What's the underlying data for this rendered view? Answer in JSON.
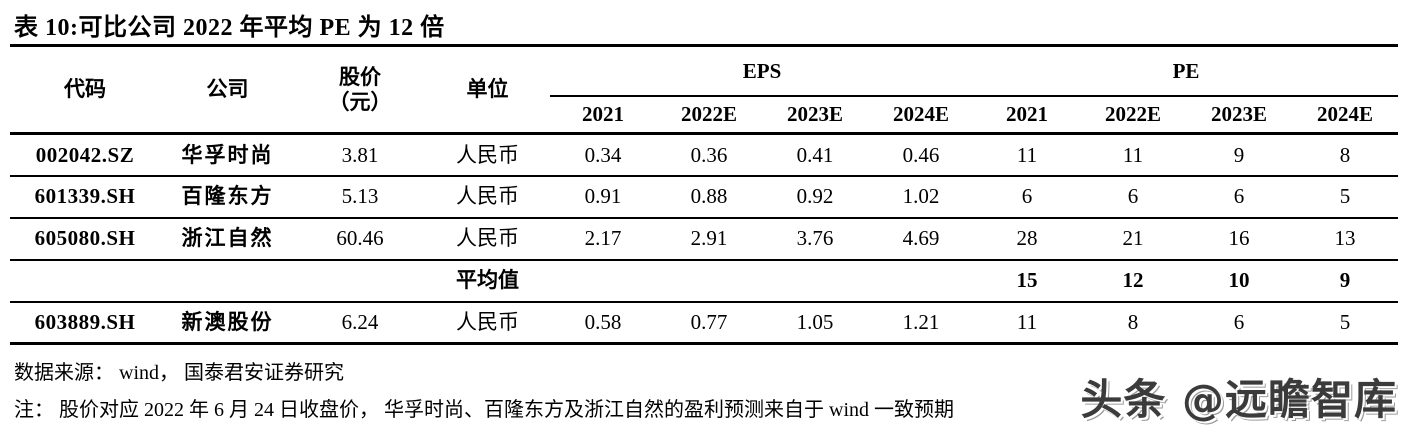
{
  "title": "表 10:可比公司 2022 年平均 PE 为 12 倍",
  "table": {
    "headers": {
      "code": "代码",
      "company": "公司",
      "price_line1": "股价",
      "price_line2": "（元）",
      "unit": "单位",
      "eps_group": "EPS",
      "pe_group": "PE",
      "eps_years": [
        "2021",
        "2022E",
        "2023E",
        "2024E"
      ],
      "pe_years": [
        "2021",
        "2022E",
        "2023E",
        "2024E"
      ]
    },
    "rows": [
      {
        "code": "002042.SZ",
        "company": "华孚时尚",
        "price": "3.81",
        "unit": "人民币",
        "eps": [
          "0.34",
          "0.36",
          "0.41",
          "0.46"
        ],
        "pe": [
          "11",
          "11",
          "9",
          "8"
        ],
        "is_average": false
      },
      {
        "code": "601339.SH",
        "company": "百隆东方",
        "price": "5.13",
        "unit": "人民币",
        "eps": [
          "0.91",
          "0.88",
          "0.92",
          "1.02"
        ],
        "pe": [
          "6",
          "6",
          "6",
          "5"
        ],
        "is_average": false
      },
      {
        "code": "605080.SH",
        "company": "浙江自然",
        "price": "60.46",
        "unit": "人民币",
        "eps": [
          "2.17",
          "2.91",
          "3.76",
          "4.69"
        ],
        "pe": [
          "28",
          "21",
          "16",
          "13"
        ],
        "is_average": false
      },
      {
        "code": "",
        "company": "",
        "price": "",
        "unit": "平均值",
        "eps": [
          "",
          "",
          "",
          ""
        ],
        "pe": [
          "15",
          "12",
          "10",
          "9"
        ],
        "is_average": true
      },
      {
        "code": "603889.SH",
        "company": "新澳股份",
        "price": "6.24",
        "unit": "人民币",
        "eps": [
          "0.58",
          "0.77",
          "1.05",
          "1.21"
        ],
        "pe": [
          "11",
          "8",
          "6",
          "5"
        ],
        "is_average": false
      }
    ]
  },
  "footer": {
    "source": "数据来源： wind， 国泰君安证券研究",
    "note": "注： 股价对应 2022 年 6 月 24 日收盘价， 华孚时尚、百隆东方及浙江自然的盈利预测来自于 wind 一致预期"
  },
  "watermark": "头条 @远瞻智库",
  "colors": {
    "text": "#000000",
    "background": "#ffffff",
    "watermark": "#3b3b3b"
  }
}
